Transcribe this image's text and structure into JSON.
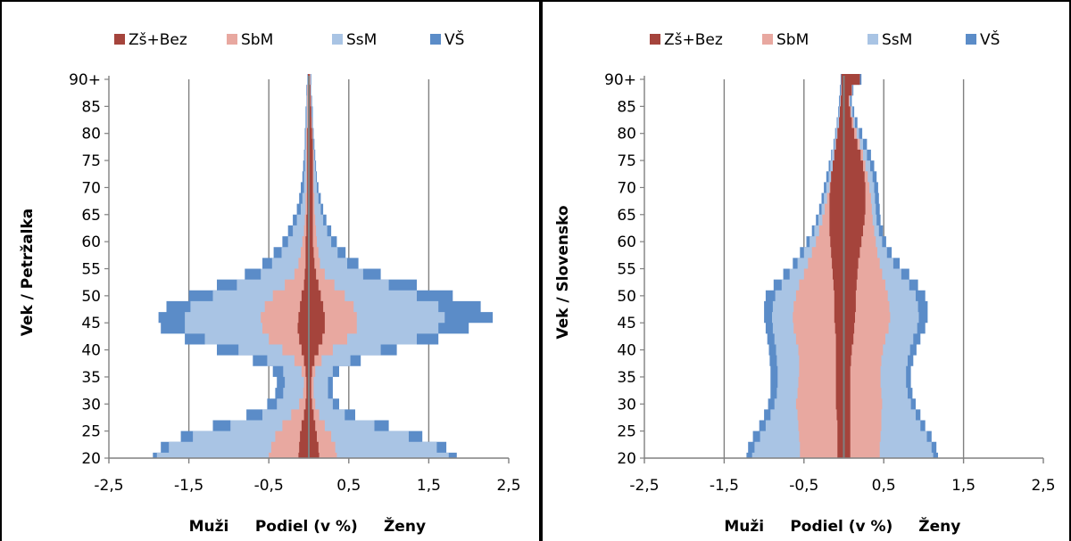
{
  "colors": {
    "zs_bez": "#A5443C",
    "sbm": "#E8A8A0",
    "ssm": "#A9C4E4",
    "vs": "#5B8CC8",
    "grid": "#808080",
    "axis": "#808080",
    "border": "#000000"
  },
  "chart_data": [
    {
      "type": "area",
      "title": "",
      "xlabel_left": "Muži",
      "xlabel_center": "Podiel (v %)",
      "xlabel_right": "Ženy",
      "ylabel": "Vek / Petržalka",
      "xlim": [
        -2.5,
        2.5
      ],
      "xticks": [
        "-2,5",
        "-1,5",
        "-0,5",
        "0,5",
        "1,5",
        "2,5"
      ],
      "xtick_values": [
        -2.5,
        -1.5,
        -0.5,
        0.5,
        1.5,
        2.5
      ],
      "yticks": [
        "20",
        "25",
        "30",
        "35",
        "40",
        "45",
        "50",
        "55",
        "60",
        "65",
        "70",
        "75",
        "80",
        "85",
        "90+"
      ],
      "ages": [
        20,
        22,
        24,
        26,
        28,
        30,
        32,
        34,
        36,
        38,
        40,
        42,
        44,
        46,
        48,
        50,
        52,
        54,
        56,
        58,
        60,
        62,
        64,
        66,
        68,
        70,
        72,
        74,
        76,
        78,
        80,
        82,
        84,
        86,
        88,
        90
      ],
      "legend": [
        {
          "name": "Zš+Bez",
          "color_key": "zs_bez"
        },
        {
          "name": "SbM",
          "color_key": "sbm"
        },
        {
          "name": "SsM",
          "color_key": "ssm"
        },
        {
          "name": "VŠ",
          "color_key": "vs"
        }
      ],
      "men_cumulative": {
        "zs_bez": [
          -0.13,
          -0.12,
          -0.11,
          -0.09,
          -0.06,
          -0.04,
          -0.03,
          -0.03,
          -0.04,
          -0.06,
          -0.09,
          -0.12,
          -0.14,
          -0.13,
          -0.11,
          -0.09,
          -0.06,
          -0.05,
          -0.04,
          -0.04,
          -0.04,
          -0.03,
          -0.03,
          -0.02,
          -0.02,
          -0.02,
          -0.02,
          -0.02,
          -0.02,
          -0.02,
          -0.02,
          -0.01,
          -0.01,
          -0.01,
          -0.01,
          -0.01
        ],
        "sbm": [
          -0.5,
          -0.47,
          -0.42,
          -0.33,
          -0.22,
          -0.12,
          -0.07,
          -0.06,
          -0.09,
          -0.18,
          -0.33,
          -0.5,
          -0.58,
          -0.6,
          -0.55,
          -0.45,
          -0.3,
          -0.18,
          -0.13,
          -0.1,
          -0.08,
          -0.06,
          -0.05,
          -0.04,
          -0.04,
          -0.03,
          -0.03,
          -0.03,
          -0.03,
          -0.03,
          -0.03,
          -0.02,
          -0.02,
          -0.02,
          -0.02,
          -0.01
        ],
        "ssm": [
          -1.9,
          -1.75,
          -1.45,
          -0.98,
          -0.58,
          -0.4,
          -0.32,
          -0.3,
          -0.32,
          -0.52,
          -0.88,
          -1.3,
          -1.55,
          -1.55,
          -1.48,
          -1.2,
          -0.9,
          -0.6,
          -0.46,
          -0.34,
          -0.26,
          -0.2,
          -0.15,
          -0.1,
          -0.08,
          -0.06,
          -0.06,
          -0.05,
          -0.05,
          -0.04,
          -0.04,
          -0.03,
          -0.03,
          -0.03,
          -0.02,
          -0.02
        ],
        "vs": [
          -1.95,
          -1.85,
          -1.6,
          -1.2,
          -0.78,
          -0.52,
          -0.42,
          -0.4,
          -0.45,
          -0.7,
          -1.15,
          -1.55,
          -1.85,
          -1.88,
          -1.78,
          -1.5,
          -1.15,
          -0.8,
          -0.58,
          -0.44,
          -0.33,
          -0.26,
          -0.2,
          -0.15,
          -0.12,
          -0.1,
          -0.08,
          -0.07,
          -0.06,
          -0.05,
          -0.05,
          -0.04,
          -0.04,
          -0.03,
          -0.03,
          -0.02
        ]
      },
      "women_cumulative": {
        "zs_bez": [
          0.13,
          0.12,
          0.1,
          0.08,
          0.06,
          0.04,
          0.03,
          0.03,
          0.04,
          0.07,
          0.12,
          0.17,
          0.2,
          0.2,
          0.18,
          0.15,
          0.12,
          0.09,
          0.07,
          0.06,
          0.05,
          0.05,
          0.05,
          0.05,
          0.05,
          0.05,
          0.05,
          0.05,
          0.05,
          0.05,
          0.04,
          0.03,
          0.03,
          0.02,
          0.02,
          0.01
        ],
        "sbm": [
          0.35,
          0.33,
          0.28,
          0.2,
          0.13,
          0.08,
          0.06,
          0.06,
          0.08,
          0.16,
          0.3,
          0.48,
          0.6,
          0.6,
          0.56,
          0.45,
          0.32,
          0.2,
          0.14,
          0.12,
          0.1,
          0.09,
          0.08,
          0.07,
          0.07,
          0.06,
          0.06,
          0.06,
          0.06,
          0.05,
          0.05,
          0.04,
          0.03,
          0.03,
          0.02,
          0.02
        ],
        "ssm": [
          1.75,
          1.6,
          1.25,
          0.82,
          0.45,
          0.3,
          0.24,
          0.24,
          0.3,
          0.52,
          0.9,
          1.35,
          1.62,
          1.7,
          1.62,
          1.35,
          1.0,
          0.68,
          0.48,
          0.36,
          0.28,
          0.23,
          0.18,
          0.15,
          0.12,
          0.1,
          0.09,
          0.08,
          0.07,
          0.06,
          0.05,
          0.04,
          0.04,
          0.03,
          0.03,
          0.02
        ],
        "vs": [
          1.85,
          1.72,
          1.42,
          1.0,
          0.58,
          0.38,
          0.3,
          0.3,
          0.38,
          0.65,
          1.1,
          1.62,
          2.0,
          2.3,
          2.15,
          1.8,
          1.35,
          0.9,
          0.62,
          0.46,
          0.35,
          0.28,
          0.22,
          0.18,
          0.15,
          0.12,
          0.1,
          0.09,
          0.08,
          0.07,
          0.06,
          0.05,
          0.05,
          0.04,
          0.03,
          0.03
        ]
      }
    },
    {
      "type": "area",
      "title": "",
      "xlabel_left": "Muži",
      "xlabel_center": "Podiel (v %)",
      "xlabel_right": "Ženy",
      "ylabel": "Vek / Slovensko",
      "xlim": [
        -2.5,
        2.5
      ],
      "xticks": [
        "-2,5",
        "-1,5",
        "-0,5",
        "0,5",
        "1,5",
        "2,5"
      ],
      "xtick_values": [
        -2.5,
        -1.5,
        -0.5,
        0.5,
        1.5,
        2.5
      ],
      "yticks": [
        "20",
        "25",
        "30",
        "35",
        "40",
        "45",
        "50",
        "55",
        "60",
        "65",
        "70",
        "75",
        "80",
        "85",
        "90+"
      ],
      "ages": [
        20,
        22,
        24,
        26,
        28,
        30,
        32,
        34,
        36,
        38,
        40,
        42,
        44,
        46,
        48,
        50,
        52,
        54,
        56,
        58,
        60,
        62,
        64,
        66,
        68,
        70,
        72,
        74,
        76,
        78,
        80,
        82,
        84,
        86,
        88,
        90
      ],
      "legend": [
        {
          "name": "Zš+Bez",
          "color_key": "zs_bez"
        },
        {
          "name": "SbM",
          "color_key": "sbm"
        },
        {
          "name": "SsM",
          "color_key": "ssm"
        },
        {
          "name": "VŠ",
          "color_key": "vs"
        }
      ],
      "men_cumulative": {
        "zs_bez": [
          -0.08,
          -0.08,
          -0.08,
          -0.08,
          -0.09,
          -0.1,
          -0.1,
          -0.1,
          -0.1,
          -0.1,
          -0.1,
          -0.1,
          -0.11,
          -0.12,
          -0.12,
          -0.12,
          -0.13,
          -0.14,
          -0.15,
          -0.16,
          -0.17,
          -0.18,
          -0.18,
          -0.18,
          -0.18,
          -0.17,
          -0.16,
          -0.14,
          -0.12,
          -0.1,
          -0.08,
          -0.06,
          -0.05,
          -0.04,
          -0.03,
          -0.03
        ],
        "sbm": [
          -0.55,
          -0.55,
          -0.56,
          -0.57,
          -0.58,
          -0.6,
          -0.58,
          -0.57,
          -0.56,
          -0.56,
          -0.57,
          -0.6,
          -0.63,
          -0.64,
          -0.63,
          -0.6,
          -0.56,
          -0.5,
          -0.45,
          -0.4,
          -0.35,
          -0.31,
          -0.27,
          -0.24,
          -0.21,
          -0.18,
          -0.16,
          -0.14,
          -0.12,
          -0.1,
          -0.08,
          -0.06,
          -0.05,
          -0.04,
          -0.03,
          -0.03
        ],
        "ssm": [
          -1.15,
          -1.12,
          -1.05,
          -0.98,
          -0.92,
          -0.87,
          -0.84,
          -0.83,
          -0.83,
          -0.84,
          -0.85,
          -0.87,
          -0.89,
          -0.9,
          -0.89,
          -0.86,
          -0.78,
          -0.68,
          -0.58,
          -0.5,
          -0.43,
          -0.37,
          -0.32,
          -0.28,
          -0.25,
          -0.22,
          -0.19,
          -0.17,
          -0.15,
          -0.12,
          -0.1,
          -0.08,
          -0.06,
          -0.05,
          -0.04,
          -0.03
        ],
        "vs": [
          -1.22,
          -1.2,
          -1.14,
          -1.06,
          -1.0,
          -0.95,
          -0.92,
          -0.92,
          -0.92,
          -0.93,
          -0.94,
          -0.96,
          -0.98,
          -1.0,
          -1.0,
          -0.98,
          -0.88,
          -0.76,
          -0.64,
          -0.55,
          -0.47,
          -0.4,
          -0.35,
          -0.31,
          -0.28,
          -0.25,
          -0.22,
          -0.19,
          -0.16,
          -0.13,
          -0.11,
          -0.09,
          -0.07,
          -0.06,
          -0.05,
          -0.04
        ]
      },
      "women_cumulative": {
        "zs_bez": [
          0.08,
          0.08,
          0.08,
          0.08,
          0.08,
          0.08,
          0.08,
          0.08,
          0.08,
          0.09,
          0.1,
          0.12,
          0.13,
          0.14,
          0.15,
          0.15,
          0.16,
          0.17,
          0.18,
          0.2,
          0.22,
          0.24,
          0.26,
          0.27,
          0.27,
          0.27,
          0.26,
          0.24,
          0.21,
          0.17,
          0.13,
          0.1,
          0.08,
          0.06,
          0.1,
          0.2
        ],
        "sbm": [
          0.45,
          0.45,
          0.46,
          0.47,
          0.47,
          0.48,
          0.47,
          0.46,
          0.46,
          0.47,
          0.49,
          0.52,
          0.56,
          0.58,
          0.57,
          0.55,
          0.52,
          0.48,
          0.45,
          0.42,
          0.4,
          0.38,
          0.36,
          0.35,
          0.34,
          0.32,
          0.3,
          0.27,
          0.24,
          0.2,
          0.16,
          0.12,
          0.09,
          0.07,
          0.1,
          0.2
        ],
        "ssm": [
          1.12,
          1.1,
          1.04,
          0.96,
          0.9,
          0.84,
          0.8,
          0.78,
          0.78,
          0.8,
          0.83,
          0.87,
          0.92,
          0.94,
          0.93,
          0.9,
          0.82,
          0.72,
          0.62,
          0.54,
          0.48,
          0.44,
          0.41,
          0.4,
          0.39,
          0.38,
          0.36,
          0.33,
          0.29,
          0.24,
          0.19,
          0.14,
          0.11,
          0.08,
          0.11,
          0.2
        ],
        "vs": [
          1.18,
          1.16,
          1.1,
          1.02,
          0.96,
          0.9,
          0.86,
          0.84,
          0.84,
          0.87,
          0.91,
          0.96,
          1.02,
          1.05,
          1.05,
          1.02,
          0.93,
          0.82,
          0.7,
          0.6,
          0.53,
          0.49,
          0.46,
          0.45,
          0.44,
          0.43,
          0.41,
          0.38,
          0.34,
          0.29,
          0.23,
          0.17,
          0.13,
          0.1,
          0.12,
          0.22
        ]
      }
    }
  ]
}
